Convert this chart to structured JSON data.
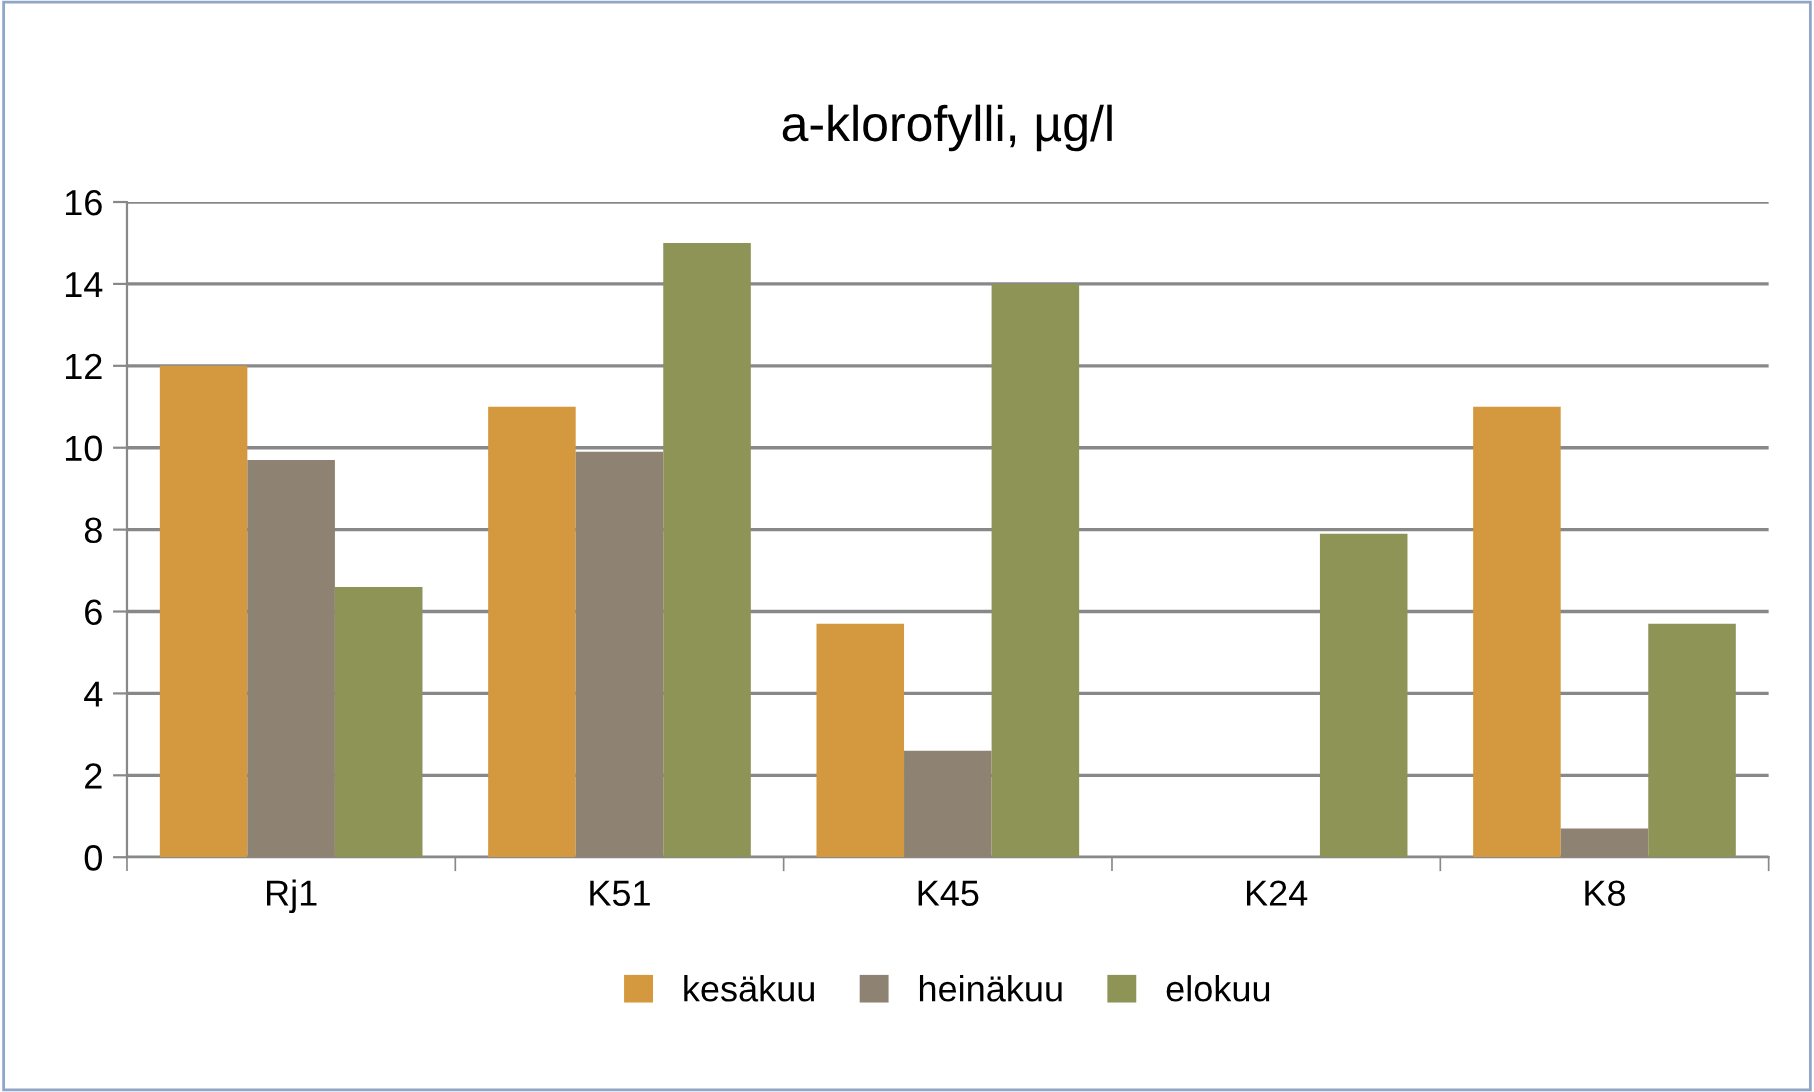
{
  "chart_data": {
    "type": "bar",
    "title": "a-klorofylli, µg/l",
    "categories": [
      "Rj1",
      "K51",
      "K45",
      "K24",
      "K8"
    ],
    "series": [
      {
        "name": "kesäkuu",
        "color": "#d4983f",
        "values": [
          12,
          11,
          5.7,
          null,
          11
        ]
      },
      {
        "name": "heinäkuu",
        "color": "#8e8273",
        "values": [
          9.7,
          9.9,
          2.6,
          null,
          0.7
        ]
      },
      {
        "name": "elokuu",
        "color": "#8d9456",
        "values": [
          6.6,
          15,
          14,
          7.9,
          5.7
        ]
      }
    ],
    "ylim": [
      0,
      16
    ],
    "yticks": [
      0,
      2,
      4,
      6,
      8,
      10,
      12,
      14,
      16
    ],
    "grid": "y",
    "legend": "bottom"
  }
}
